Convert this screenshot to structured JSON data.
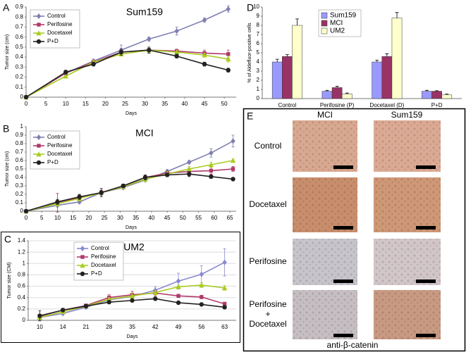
{
  "chart_data": [
    {
      "type": "line",
      "panel": "A",
      "title": "Sum159",
      "xlabel": "Days",
      "ylabel": "Tumor size (cm)",
      "x": [
        0,
        10,
        17,
        24,
        31,
        38,
        45,
        51
      ],
      "xlim": [
        0,
        53
      ],
      "xticks": [
        0,
        5,
        10,
        15,
        20,
        25,
        30,
        35,
        40,
        45,
        50
      ],
      "ylim": [
        0,
        0.9
      ],
      "yticks": [
        0,
        0.1,
        0.2,
        0.3,
        0.4,
        0.5,
        0.6,
        0.7,
        0.8,
        0.9
      ],
      "grid": false,
      "series": [
        {
          "name": "Control",
          "color": "#7f7fb2",
          "marker": "diamond",
          "values": [
            0,
            0.24,
            0.36,
            0.47,
            0.58,
            0.66,
            0.77,
            0.88
          ],
          "errors": [
            0,
            0.02,
            0.02,
            0.05,
            0.02,
            0.04,
            0.02,
            0.03
          ]
        },
        {
          "name": "Perifosine",
          "color": "#b03a6a",
          "marker": "square",
          "values": [
            0,
            0.24,
            0.35,
            0.45,
            0.47,
            0.46,
            0.44,
            0.43
          ],
          "errors": [
            0,
            0.02,
            0.02,
            0.03,
            0.03,
            0.02,
            0.03,
            0.04
          ]
        },
        {
          "name": "Docetaxel",
          "color": "#a8cc20",
          "marker": "triangle",
          "values": [
            0,
            0.21,
            0.35,
            0.43,
            0.47,
            0.45,
            0.42,
            0.38
          ],
          "errors": [
            0,
            0.02,
            0.02,
            0.02,
            0.03,
            0.02,
            0.02,
            0.03
          ]
        },
        {
          "name": "P+D",
          "color": "#222222",
          "marker": "circle",
          "values": [
            0,
            0.25,
            0.33,
            0.45,
            0.47,
            0.41,
            0.33,
            0.27
          ],
          "errors": [
            0,
            0.02,
            0.02,
            0.03,
            0.03,
            0.02,
            0.02,
            0.02
          ]
        }
      ]
    },
    {
      "type": "line",
      "panel": "B",
      "title": "MCI",
      "xlabel": "Days",
      "ylabel": "Tumor size (cm)",
      "x": [
        0,
        10,
        17,
        24,
        31,
        38,
        45,
        52,
        59,
        66
      ],
      "xlim": [
        0,
        67
      ],
      "xticks": [
        0,
        5,
        10,
        15,
        20,
        25,
        30,
        35,
        40,
        45,
        50,
        55,
        60,
        65
      ],
      "ylim": [
        0,
        1
      ],
      "yticks": [
        0,
        0.1,
        0.2,
        0.3,
        0.4,
        0.5,
        0.6,
        0.7,
        0.8,
        0.9,
        1
      ],
      "grid": false,
      "series": [
        {
          "name": "Control",
          "color": "#7f7fb2",
          "marker": "diamond",
          "values": [
            0,
            0.07,
            0.11,
            0.22,
            0.28,
            0.37,
            0.47,
            0.58,
            0.69,
            0.83
          ],
          "errors": [
            0,
            0.02,
            0.02,
            0.03,
            0.02,
            0.02,
            0.02,
            0.02,
            0.05,
            0.07
          ]
        },
        {
          "name": "Perifosine",
          "color": "#b03a6a",
          "marker": "square",
          "values": [
            0,
            0.1,
            0.16,
            0.22,
            0.3,
            0.4,
            0.45,
            0.47,
            0.48,
            0.5
          ],
          "errors": [
            0,
            0.11,
            0.03,
            0.03,
            0.02,
            0.03,
            0.03,
            0.04,
            0.04,
            0.03
          ]
        },
        {
          "name": "Docetaxel",
          "color": "#a8cc20",
          "marker": "triangle",
          "values": [
            0,
            0.09,
            0.15,
            0.22,
            0.29,
            0.38,
            0.44,
            0.5,
            0.55,
            0.6
          ],
          "errors": [
            0,
            0.03,
            0.03,
            0.02,
            0.02,
            0.03,
            0.03,
            0.03,
            0.03,
            0.02
          ]
        },
        {
          "name": "P+D",
          "color": "#222222",
          "marker": "circle",
          "values": [
            0,
            0.11,
            0.17,
            0.22,
            0.3,
            0.4,
            0.43,
            0.44,
            0.41,
            0.38
          ],
          "errors": [
            0,
            0.03,
            0.03,
            0.05,
            0.02,
            0.03,
            0.02,
            0.03,
            0.02,
            0.02
          ]
        }
      ]
    },
    {
      "type": "line",
      "panel": "C",
      "title": "UM2",
      "xlabel": "Days",
      "ylabel": "Tumor size (CM)",
      "categories": [
        "10",
        "14",
        "21",
        "28",
        "35",
        "42",
        "49",
        "56",
        "63"
      ],
      "ylim": [
        0,
        1.4
      ],
      "yticks": [
        0,
        0.2,
        0.4,
        0.6,
        0.8,
        1,
        1.2,
        1.4
      ],
      "grid": true,
      "series": [
        {
          "name": "Control",
          "color": "#8a8ad0",
          "marker": "diamond",
          "values": [
            0.05,
            0.12,
            0.23,
            0.36,
            0.42,
            0.53,
            0.69,
            0.81,
            1.02
          ],
          "errors": [
            0.05,
            0.03,
            0.03,
            0.04,
            0.05,
            0.06,
            0.14,
            0.15,
            0.24
          ]
        },
        {
          "name": "Perifosine",
          "color": "#b03a6a",
          "marker": "square",
          "values": [
            0.07,
            0.18,
            0.26,
            0.4,
            0.45,
            0.48,
            0.43,
            0.41,
            0.29
          ],
          "errors": [
            0.03,
            0.03,
            0.02,
            0.05,
            0.06,
            0.05,
            0.03,
            0.03,
            0.03
          ]
        },
        {
          "name": "Docetaxel",
          "color": "#a8cc20",
          "marker": "triangle",
          "values": [
            0.05,
            0.15,
            0.25,
            0.37,
            0.43,
            0.49,
            0.59,
            0.62,
            0.57
          ],
          "errors": [
            0.03,
            0.02,
            0.02,
            0.03,
            0.04,
            0.04,
            0.03,
            0.04,
            0.04
          ]
        },
        {
          "name": "P+D",
          "color": "#222222",
          "marker": "circle",
          "values": [
            0.08,
            0.18,
            0.25,
            0.32,
            0.35,
            0.38,
            0.31,
            0.28,
            0.23
          ],
          "errors": [
            0.09,
            0.03,
            0.03,
            0.03,
            0.03,
            0.03,
            0.02,
            0.02,
            0.02
          ]
        }
      ]
    },
    {
      "type": "bar",
      "panel": "D",
      "ylabel": "% of Aldefluor-positive cells",
      "categories": [
        "Control",
        "Perifosine (P)",
        "Docetaxel (D)",
        "P+D"
      ],
      "ylim": [
        0,
        10
      ],
      "yticks": [
        0,
        1,
        2,
        3,
        4,
        5,
        6,
        7,
        8,
        9,
        10
      ],
      "grid": false,
      "series": [
        {
          "name": "Sum159",
          "color": "#9999ff",
          "values": [
            4.0,
            0.8,
            4.0,
            0.8
          ],
          "errors": [
            0.3,
            0.1,
            0.2,
            0.1
          ]
        },
        {
          "name": "MCI",
          "color": "#993366",
          "values": [
            4.6,
            1.2,
            4.6,
            0.8
          ],
          "errors": [
            0.2,
            0.15,
            0.3,
            0.05
          ]
        },
        {
          "name": "UM2",
          "color": "#ffffcc",
          "values": [
            8.0,
            0.5,
            8.8,
            0.4
          ],
          "errors": [
            0.7,
            0.1,
            0.6,
            0.1
          ]
        }
      ]
    }
  ],
  "panel_e": {
    "label": "E",
    "columns": [
      "MCI",
      "Sum159"
    ],
    "rows": [
      {
        "lines": [
          "Control"
        ]
      },
      {
        "lines": [
          "Docetaxel"
        ]
      },
      {
        "lines": [
          "Perifosine"
        ]
      },
      {
        "lines": [
          "Perifosine",
          "+",
          "Docetaxel"
        ]
      }
    ],
    "caption": "anti-β-catenin"
  }
}
